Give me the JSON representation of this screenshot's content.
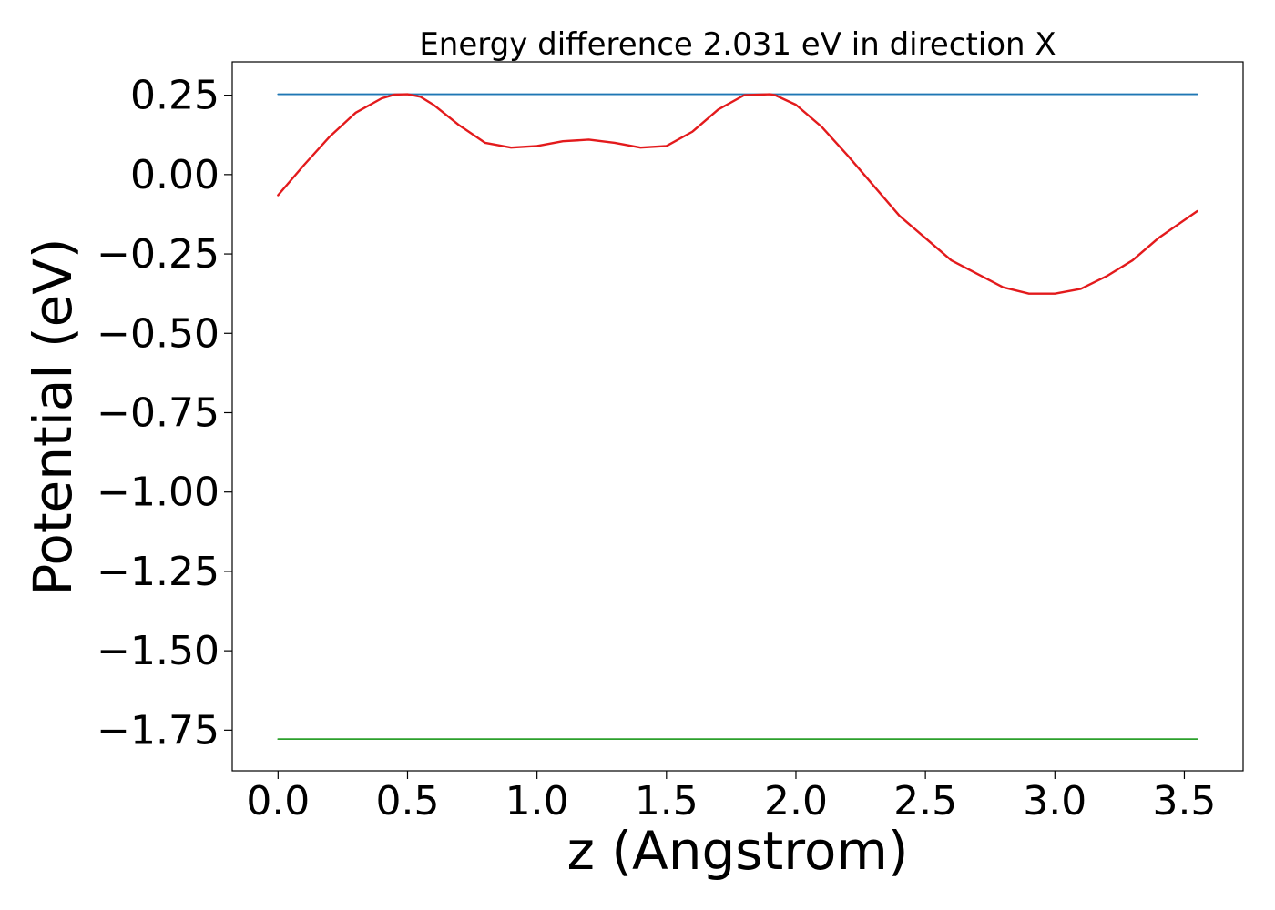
{
  "chart_data": {
    "type": "line",
    "title": "Energy difference 2.031 eV in direction X",
    "xlabel": "z (Angstrom)",
    "ylabel": "Potential (eV)",
    "xlim": [
      -0.177,
      3.727
    ],
    "ylim": [
      -1.878,
      0.355
    ],
    "xticks": [
      0.0,
      0.5,
      1.0,
      1.5,
      2.0,
      2.5,
      3.0,
      3.5
    ],
    "xtick_labels": [
      "0.0",
      "0.5",
      "1.0",
      "1.5",
      "2.0",
      "2.5",
      "3.0",
      "3.5"
    ],
    "yticks": [
      0.25,
      0.0,
      -0.25,
      -0.5,
      -0.75,
      -1.0,
      -1.25,
      -1.5,
      -1.75
    ],
    "ytick_labels": [
      "0.25",
      "0.00",
      "−0.25",
      "−0.50",
      "−0.75",
      "−1.00",
      "−1.25",
      "−1.50",
      "−1.75"
    ],
    "grid": false,
    "series": [
      {
        "color": "#1f77b4",
        "x": [
          0.0,
          3.55
        ],
        "y": [
          0.253,
          0.253
        ]
      },
      {
        "color": "#2ca02c",
        "x": [
          0.0,
          3.55
        ],
        "y": [
          -1.778,
          -1.778
        ]
      },
      {
        "color": "#e31a1c",
        "x": [
          0.0,
          0.1,
          0.2,
          0.3,
          0.4,
          0.45,
          0.5,
          0.55,
          0.6,
          0.7,
          0.8,
          0.9,
          1.0,
          1.1,
          1.2,
          1.3,
          1.4,
          1.5,
          1.6,
          1.7,
          1.8,
          1.9,
          1.92,
          2.0,
          2.1,
          2.2,
          2.4,
          2.6,
          2.8,
          2.9,
          3.0,
          3.1,
          3.2,
          3.3,
          3.4,
          3.55
        ],
        "y": [
          -0.065,
          0.03,
          0.12,
          0.195,
          0.24,
          0.252,
          0.253,
          0.245,
          0.22,
          0.155,
          0.1,
          0.085,
          0.09,
          0.105,
          0.11,
          0.1,
          0.085,
          0.09,
          0.135,
          0.205,
          0.25,
          0.253,
          0.25,
          0.22,
          0.15,
          0.06,
          -0.13,
          -0.27,
          -0.355,
          -0.375,
          -0.375,
          -0.36,
          -0.32,
          -0.27,
          -0.2,
          -0.115
        ]
      }
    ]
  }
}
